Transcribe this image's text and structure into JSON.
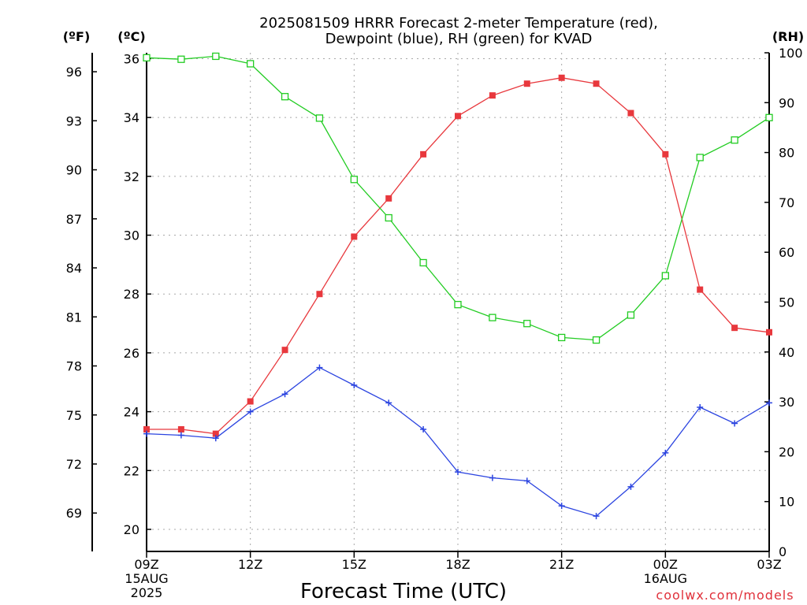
{
  "title_line1": "2025081509 HRRR Forecast 2-meter Temperature (red),",
  "title_line2": "Dewpoint (blue), RH (green) for KVAD",
  "credit": "coolwx.com/models",
  "chart_data": {
    "type": "line",
    "title": "2025081509 HRRR Forecast 2-meter Temperature (red), Dewpoint (blue), RH (green) for KVAD",
    "xlabel": "Forecast Time (UTC)",
    "x_hours": [
      0,
      1,
      2,
      3,
      4,
      5,
      6,
      7,
      8,
      9,
      10,
      11,
      12,
      13,
      14,
      15,
      16,
      17,
      18
    ],
    "x_range": [
      0,
      18
    ],
    "x_ticks": [
      {
        "hour": 0,
        "lines": [
          "09Z",
          "15AUG",
          "2025"
        ]
      },
      {
        "hour": 3,
        "lines": [
          "12Z"
        ]
      },
      {
        "hour": 6,
        "lines": [
          "15Z"
        ]
      },
      {
        "hour": 9,
        "lines": [
          "18Z"
        ]
      },
      {
        "hour": 12,
        "lines": [
          "21Z"
        ]
      },
      {
        "hour": 15,
        "lines": [
          "00Z",
          "16AUG"
        ]
      },
      {
        "hour": 18,
        "lines": [
          "03Z"
        ]
      }
    ],
    "axes": {
      "fahrenheit": {
        "label": "(ºF)",
        "ticks": [
          69,
          72,
          75,
          78,
          81,
          84,
          87,
          90,
          93,
          96
        ]
      },
      "celsius": {
        "label": "(ºC)",
        "ylim": [
          19.25,
          36.2
        ],
        "ticks": [
          20,
          22,
          24,
          26,
          28,
          30,
          32,
          34,
          36
        ]
      },
      "rh": {
        "label": "(RH)",
        "ylim": [
          0,
          100
        ],
        "ticks": [
          0,
          10,
          20,
          30,
          40,
          50,
          60,
          70,
          80,
          90,
          100
        ]
      }
    },
    "grid": true,
    "series": [
      {
        "name": "Temperature",
        "axis": "celsius",
        "color": "#e8383d",
        "marker": "filled-square",
        "values": [
          23.4,
          23.4,
          23.25,
          24.35,
          26.1,
          28.0,
          29.95,
          31.25,
          32.75,
          34.05,
          34.75,
          35.15,
          35.35,
          35.15,
          34.15,
          32.75,
          28.15,
          26.85,
          26.7
        ]
      },
      {
        "name": "Dewpoint",
        "axis": "celsius",
        "color": "#2b44e0",
        "marker": "plus",
        "values": [
          23.25,
          23.2,
          23.1,
          24.0,
          24.6,
          25.5,
          24.9,
          24.3,
          23.4,
          21.95,
          21.75,
          21.65,
          20.8,
          20.45,
          21.45,
          22.6,
          24.15,
          23.6,
          24.3
        ]
      },
      {
        "name": "RH",
        "axis": "rh",
        "color": "#22cc22",
        "marker": "open-square",
        "values": [
          99.0,
          98.7,
          99.3,
          97.8,
          91.2,
          86.9,
          74.6,
          66.9,
          57.9,
          49.5,
          46.9,
          45.7,
          42.9,
          42.4,
          47.4,
          55.3,
          79.0,
          82.5,
          87.0
        ]
      }
    ]
  }
}
